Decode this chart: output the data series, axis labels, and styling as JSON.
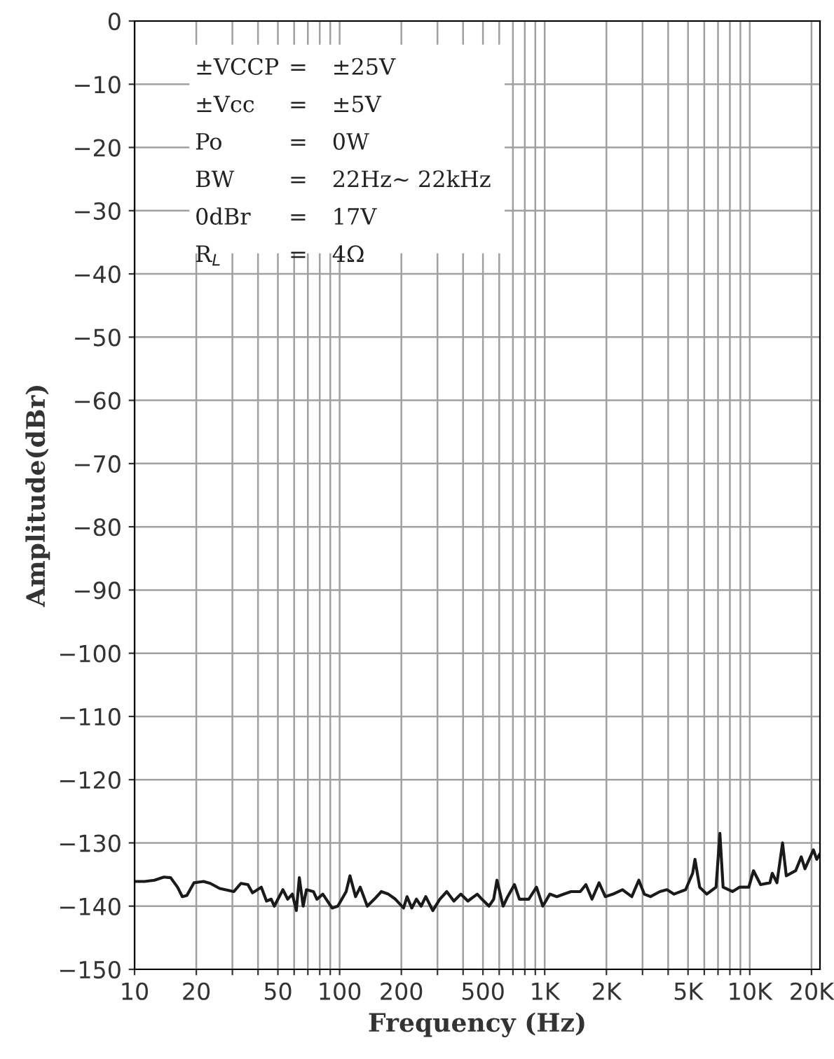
{
  "chart_data": {
    "type": "line",
    "xlabel": "Frequency (Hz)",
    "ylabel": "Amplitude(dBr)",
    "log": "x",
    "grid": true,
    "marker": "none",
    "line_style": "solid",
    "xlim": [
      10,
      22000
    ],
    "ylim": [
      -150,
      0
    ],
    "xticks": [
      10,
      20,
      {
        "value": 30,
        "label": null
      },
      {
        "value": 40,
        "label": null
      },
      50,
      {
        "value": 60,
        "label": null
      },
      {
        "value": 70,
        "label": null
      },
      {
        "value": 80,
        "label": null
      },
      {
        "value": 90,
        "label": null
      },
      100,
      200,
      {
        "value": 300,
        "label": null
      },
      {
        "value": 400,
        "label": null
      },
      500,
      {
        "value": 600,
        "label": null
      },
      {
        "value": 700,
        "label": null
      },
      {
        "value": 800,
        "label": null
      },
      {
        "value": 900,
        "label": null
      },
      {
        "value": 1000,
        "label": "1K"
      },
      {
        "value": 2000,
        "label": "2K"
      },
      {
        "value": 3000,
        "label": null
      },
      {
        "value": 4000,
        "label": null
      },
      {
        "value": 5000,
        "label": "5K"
      },
      {
        "value": 6000,
        "label": null
      },
      {
        "value": 7000,
        "label": null
      },
      {
        "value": 8000,
        "label": null
      },
      {
        "value": 9000,
        "label": null
      },
      {
        "value": 10000,
        "label": "10K"
      },
      {
        "value": 20000,
        "label": "20K"
      }
    ],
    "yticks": [
      0,
      {
        "value": -10,
        "label": "−10"
      },
      {
        "value": -20,
        "label": "−20"
      },
      {
        "value": -30,
        "label": "−30"
      },
      {
        "value": -40,
        "label": "−40"
      },
      {
        "value": -50,
        "label": "−50"
      },
      {
        "value": -60,
        "label": "−60"
      },
      {
        "value": -70,
        "label": "−70"
      },
      {
        "value": -80,
        "label": "−80"
      },
      {
        "value": -90,
        "label": "−90"
      },
      {
        "value": -100,
        "label": "−100"
      },
      {
        "value": -110,
        "label": "−110"
      },
      {
        "value": -120,
        "label": "−120"
      },
      {
        "value": -130,
        "label": "−130"
      },
      {
        "value": -140,
        "label": "−140"
      },
      {
        "value": -150,
        "label": "−150"
      }
    ],
    "annotations": [
      "±VCCP = ±25V",
      "±Vcc = ±5V",
      "Po = 0W",
      "BW = 22Hz~ 22kHz",
      "0dBr = 17V",
      "R$_{L}$ = 4Ω"
    ],
    "series": [
      {
        "color": "#1a1a1a",
        "x": [
          10,
          11.2,
          12.5,
          13.9,
          15.0,
          16.2,
          17.1,
          18.0,
          19.5,
          21.7,
          23.4,
          26.0,
          30.5,
          33.0,
          35.7,
          37.6,
          41.5,
          44.0,
          46.4,
          48.0,
          52.9,
          55.8,
          58.8,
          61.5,
          63.6,
          66.4,
          68.9,
          74.5,
          77.5,
          82.8,
          91.9,
          98.0,
          107.6,
          112.3,
          119.6,
          126.0,
          136.4,
          147.6,
          159.7,
          172.8,
          187.0,
          205.0,
          213.3,
          224.8,
          237,
          249.7,
          263,
          284.7,
          308,
          333,
          360.6,
          390,
          422,
          469,
          494,
          535,
          564,
          585,
          627,
          660,
          712,
          753,
          836,
          912,
          979,
          1059,
          1146,
          1241,
          1343,
          1491,
          1588,
          1701,
          1841,
          1975,
          2154,
          2393,
          2659,
          2877,
          3060,
          3281,
          3646,
          3945,
          4266,
          4866,
          5266,
          5406,
          5697,
          6166,
          6848,
          7150,
          7413,
          8233,
          8912,
          9894,
          10430,
          11290,
          12540,
          12870,
          13570,
          14450,
          15070,
          16740,
          17830,
          18580,
          20440,
          21210,
          22000
        ],
        "values": [
          -136.1,
          -136.1,
          -135.9,
          -135.4,
          -135.5,
          -137.0,
          -138.5,
          -138.3,
          -136.3,
          -136.1,
          -136.4,
          -137.2,
          -137.7,
          -136.4,
          -136.6,
          -137.9,
          -137.0,
          -139.2,
          -138.9,
          -140.0,
          -137.4,
          -138.9,
          -138.1,
          -140.7,
          -135.5,
          -140.0,
          -137.4,
          -137.7,
          -138.9,
          -138.1,
          -140.3,
          -140.0,
          -137.7,
          -135.2,
          -138.5,
          -137.0,
          -140.0,
          -138.9,
          -137.7,
          -138.1,
          -138.9,
          -140.3,
          -138.5,
          -140.3,
          -138.9,
          -140.0,
          -138.5,
          -140.7,
          -138.9,
          -137.7,
          -139.2,
          -138.1,
          -139.2,
          -138.1,
          -138.9,
          -140.0,
          -138.9,
          -135.9,
          -140.0,
          -138.5,
          -136.6,
          -138.9,
          -138.9,
          -137.0,
          -140.0,
          -138.1,
          -138.5,
          -138.1,
          -137.7,
          -137.7,
          -136.6,
          -138.9,
          -136.3,
          -138.5,
          -138.1,
          -137.4,
          -138.5,
          -135.9,
          -138.1,
          -138.5,
          -137.7,
          -137.4,
          -138.1,
          -137.4,
          -134.8,
          -132.6,
          -137.0,
          -138.1,
          -137.0,
          -128.5,
          -137.0,
          -137.7,
          -137.0,
          -137.0,
          -134.4,
          -136.6,
          -136.3,
          -134.8,
          -136.3,
          -130.0,
          -135.2,
          -134.4,
          -132.2,
          -134.1,
          -131.1,
          -132.6,
          -131.7
        ]
      }
    ]
  }
}
